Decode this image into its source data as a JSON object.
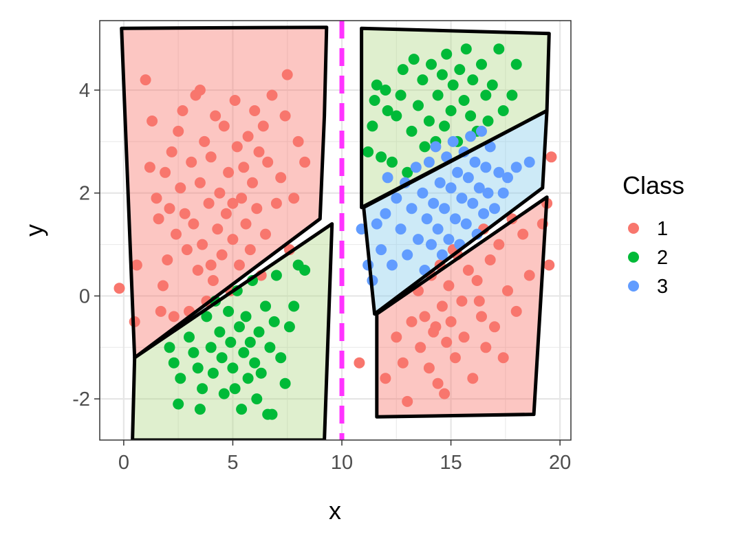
{
  "chart_data": {
    "type": "scatter",
    "title": "",
    "xlabel": "x",
    "ylabel": "y",
    "xlim": [
      -1.1,
      20.5
    ],
    "ylim": [
      -2.8,
      5.35
    ],
    "xticks": [
      0,
      5,
      10,
      15,
      20
    ],
    "yticks": [
      -2,
      0,
      2,
      4
    ],
    "grid": true,
    "legend": {
      "title": "Class",
      "position": "right",
      "entries": [
        {
          "label": "1",
          "color": "#F8766D"
        },
        {
          "label": "2",
          "color": "#00BA38"
        },
        {
          "label": "3",
          "color": "#619CFF"
        }
      ]
    },
    "decision_boundary": {
      "x": 10,
      "color": "#FF33FF",
      "style": "dashed"
    },
    "regions": [
      {
        "class": "1",
        "fill": "#F8766D",
        "points": [
          [
            -0.1,
            5.2
          ],
          [
            9.3,
            5.22
          ],
          [
            9.2,
            3.5
          ],
          [
            9.0,
            1.5
          ],
          [
            0.5,
            -1.2
          ]
        ]
      },
      {
        "class": "2",
        "fill": "#B3D98A",
        "points": [
          [
            0.5,
            -1.2
          ],
          [
            9.55,
            1.4
          ],
          [
            9.2,
            -2.8
          ],
          [
            0.4,
            -2.8
          ]
        ]
      },
      {
        "class": "2",
        "fill": "#B3D98A",
        "points": [
          [
            10.9,
            5.2
          ],
          [
            19.5,
            5.1
          ],
          [
            19.4,
            3.6
          ],
          [
            10.9,
            1.72
          ]
        ]
      },
      {
        "class": "3",
        "fill": "#87CEEB",
        "points": [
          [
            11.0,
            1.72
          ],
          [
            19.4,
            3.6
          ],
          [
            19.2,
            2.1
          ],
          [
            11.5,
            -0.35
          ]
        ]
      },
      {
        "class": "1",
        "fill": "#F8766D",
        "points": [
          [
            11.6,
            -0.35
          ],
          [
            19.4,
            1.92
          ],
          [
            18.8,
            -2.3
          ],
          [
            11.6,
            -2.35
          ]
        ]
      }
    ],
    "series": [
      {
        "name": "1",
        "color": "#F8766D",
        "points": [
          [
            -0.2,
            0.15
          ],
          [
            0.5,
            -0.5
          ],
          [
            0.6,
            0.6
          ],
          [
            1.0,
            4.2
          ],
          [
            1.2,
            2.5
          ],
          [
            1.3,
            3.4
          ],
          [
            1.5,
            1.9
          ],
          [
            1.6,
            1.5
          ],
          [
            1.7,
            -0.3
          ],
          [
            1.8,
            0.2
          ],
          [
            1.9,
            2.4
          ],
          [
            2.0,
            0.7
          ],
          [
            2.1,
            1.7
          ],
          [
            2.2,
            2.8
          ],
          [
            2.3,
            -0.4
          ],
          [
            2.4,
            1.2
          ],
          [
            2.5,
            3.2
          ],
          [
            2.6,
            2.1
          ],
          [
            2.7,
            3.6
          ],
          [
            2.8,
            1.6
          ],
          [
            2.9,
            0.9
          ],
          [
            3.0,
            -0.3
          ],
          [
            3.1,
            2.6
          ],
          [
            3.2,
            1.4
          ],
          [
            3.3,
            3.9
          ],
          [
            3.4,
            0.5
          ],
          [
            3.5,
            2.2
          ],
          [
            3.6,
            1.0
          ],
          [
            3.7,
            3.0
          ],
          [
            3.8,
            -0.1
          ],
          [
            3.9,
            1.8
          ],
          [
            4.0,
            2.7
          ],
          [
            4.1,
            0.3
          ],
          [
            4.2,
            3.5
          ],
          [
            4.3,
            1.3
          ],
          [
            4.4,
            2.0
          ],
          [
            4.5,
            0.8
          ],
          [
            4.6,
            3.3
          ],
          [
            4.7,
            1.6
          ],
          [
            4.8,
            2.4
          ],
          [
            4.9,
            0.1
          ],
          [
            5.0,
            1.1
          ],
          [
            5.1,
            3.8
          ],
          [
            5.2,
            2.9
          ],
          [
            5.3,
            0.6
          ],
          [
            5.4,
            1.9
          ],
          [
            5.5,
            2.5
          ],
          [
            5.6,
            1.4
          ],
          [
            5.7,
            3.1
          ],
          [
            5.8,
            0.9
          ],
          [
            5.9,
            2.2
          ],
          [
            6.0,
            3.6
          ],
          [
            6.1,
            1.7
          ],
          [
            6.2,
            2.8
          ],
          [
            6.3,
            0.4
          ],
          [
            6.4,
            3.3
          ],
          [
            6.5,
            1.2
          ],
          [
            6.6,
            2.6
          ],
          [
            6.8,
            3.9
          ],
          [
            7.0,
            1.8
          ],
          [
            7.2,
            2.3
          ],
          [
            7.4,
            3.5
          ],
          [
            7.5,
            4.3
          ],
          [
            7.6,
            0.9
          ],
          [
            7.8,
            1.9
          ],
          [
            8.0,
            3.0
          ],
          [
            8.3,
            2.6
          ],
          [
            3.5,
            4.0
          ],
          [
            4.0,
            0.6
          ],
          [
            5.0,
            1.8
          ],
          [
            12.5,
            -0.8
          ],
          [
            12.8,
            -1.3
          ],
          [
            13.0,
            -2.05
          ],
          [
            13.2,
            -0.5
          ],
          [
            13.5,
            0.1
          ],
          [
            13.6,
            -1.0
          ],
          [
            13.8,
            -0.4
          ],
          [
            14.0,
            -1.4
          ],
          [
            14.1,
            0.4
          ],
          [
            14.2,
            -0.7
          ],
          [
            14.4,
            -1.7
          ],
          [
            14.5,
            0.6
          ],
          [
            14.6,
            -0.2
          ],
          [
            14.7,
            -1.9
          ],
          [
            14.8,
            -0.9
          ],
          [
            14.9,
            0.2
          ],
          [
            15.0,
            -0.5
          ],
          [
            15.2,
            -1.2
          ],
          [
            15.3,
            0.8
          ],
          [
            15.5,
            -0.1
          ],
          [
            15.6,
            -0.8
          ],
          [
            15.8,
            0.5
          ],
          [
            16.0,
            -1.6
          ],
          [
            16.2,
            0.3
          ],
          [
            16.4,
            -0.4
          ],
          [
            16.5,
            1.3
          ],
          [
            16.6,
            -1.0
          ],
          [
            16.8,
            0.7
          ],
          [
            17.0,
            -0.6
          ],
          [
            17.2,
            1.0
          ],
          [
            17.4,
            -1.2
          ],
          [
            17.6,
            0.1
          ],
          [
            17.8,
            1.5
          ],
          [
            18.0,
            -0.3
          ],
          [
            18.3,
            1.2
          ],
          [
            18.6,
            0.4
          ],
          [
            19.2,
            1.4
          ],
          [
            19.4,
            1.8
          ],
          [
            19.5,
            0.6
          ],
          [
            19.6,
            2.7
          ],
          [
            10.8,
            -1.3
          ],
          [
            12.0,
            -1.6
          ],
          [
            14.3,
            -0.6
          ],
          [
            15.1,
            0.9
          ],
          [
            16.3,
            -0.1
          ]
        ]
      },
      {
        "name": "2",
        "color": "#00BA38",
        "points": [
          [
            2.1,
            -1.0
          ],
          [
            2.3,
            -1.3
          ],
          [
            2.5,
            -2.1
          ],
          [
            2.6,
            -1.6
          ],
          [
            3.0,
            -0.8
          ],
          [
            3.2,
            -1.1
          ],
          [
            3.4,
            -1.4
          ],
          [
            3.5,
            -2.2
          ],
          [
            3.6,
            -1.8
          ],
          [
            3.8,
            -0.4
          ],
          [
            4.0,
            -1.0
          ],
          [
            4.1,
            -1.5
          ],
          [
            4.2,
            -0.1
          ],
          [
            4.4,
            -0.7
          ],
          [
            4.5,
            -1.2
          ],
          [
            4.6,
            -1.9
          ],
          [
            4.8,
            -0.3
          ],
          [
            4.9,
            -0.9
          ],
          [
            5.0,
            -1.4
          ],
          [
            5.1,
            -1.8
          ],
          [
            5.2,
            0.1
          ],
          [
            5.3,
            -0.6
          ],
          [
            5.4,
            -2.2
          ],
          [
            5.5,
            -1.1
          ],
          [
            5.6,
            -0.4
          ],
          [
            5.7,
            -1.6
          ],
          [
            5.8,
            -0.9
          ],
          [
            5.9,
            0.3
          ],
          [
            6.0,
            -1.3
          ],
          [
            6.1,
            -2.0
          ],
          [
            6.2,
            -0.7
          ],
          [
            6.3,
            -1.5
          ],
          [
            6.5,
            -0.2
          ],
          [
            6.6,
            -2.3
          ],
          [
            6.7,
            -1.0
          ],
          [
            6.8,
            -2.3
          ],
          [
            6.9,
            -0.5
          ],
          [
            7.0,
            0.4
          ],
          [
            7.2,
            -1.2
          ],
          [
            7.4,
            -1.7
          ],
          [
            7.6,
            -0.6
          ],
          [
            7.8,
            -0.2
          ],
          [
            8.0,
            0.6
          ],
          [
            8.3,
            0.5
          ],
          [
            11.2,
            2.8
          ],
          [
            11.4,
            3.3
          ],
          [
            11.5,
            3.8
          ],
          [
            11.6,
            4.1
          ],
          [
            11.8,
            2.7
          ],
          [
            12.0,
            4.0
          ],
          [
            12.1,
            3.6
          ],
          [
            12.3,
            2.6
          ],
          [
            12.5,
            3.5
          ],
          [
            12.7,
            3.9
          ],
          [
            12.8,
            4.4
          ],
          [
            13.0,
            2.4
          ],
          [
            13.2,
            3.2
          ],
          [
            13.3,
            4.6
          ],
          [
            13.5,
            3.7
          ],
          [
            13.7,
            4.2
          ],
          [
            13.8,
            2.9
          ],
          [
            14.0,
            3.4
          ],
          [
            14.1,
            4.5
          ],
          [
            14.3,
            3.0
          ],
          [
            14.4,
            3.9
          ],
          [
            14.6,
            4.3
          ],
          [
            14.7,
            3.3
          ],
          [
            14.8,
            4.7
          ],
          [
            15.0,
            3.6
          ],
          [
            15.1,
            4.1
          ],
          [
            15.3,
            3.0
          ],
          [
            15.4,
            4.4
          ],
          [
            15.6,
            3.8
          ],
          [
            15.7,
            4.8
          ],
          [
            15.9,
            3.5
          ],
          [
            16.0,
            4.2
          ],
          [
            16.2,
            3.2
          ],
          [
            16.4,
            4.5
          ],
          [
            16.6,
            3.9
          ],
          [
            16.7,
            3.4
          ],
          [
            16.9,
            4.1
          ],
          [
            17.2,
            4.8
          ],
          [
            17.4,
            3.6
          ],
          [
            17.8,
            3.9
          ],
          [
            18.0,
            4.5
          ]
        ]
      },
      {
        "name": "3",
        "color": "#619CFF",
        "points": [
          [
            10.9,
            1.3
          ],
          [
            11.2,
            0.6
          ],
          [
            11.4,
            0.3
          ],
          [
            11.6,
            1.4
          ],
          [
            11.8,
            0.9
          ],
          [
            12.0,
            1.6
          ],
          [
            12.1,
            2.3
          ],
          [
            12.3,
            0.6
          ],
          [
            12.5,
            1.9
          ],
          [
            12.7,
            1.3
          ],
          [
            12.9,
            2.2
          ],
          [
            13.0,
            0.8
          ],
          [
            13.2,
            1.7
          ],
          [
            13.4,
            2.5
          ],
          [
            13.5,
            1.1
          ],
          [
            13.7,
            2.0
          ],
          [
            13.8,
            0.5
          ],
          [
            13.9,
            1.5
          ],
          [
            14.0,
            2.6
          ],
          [
            14.1,
            1.0
          ],
          [
            14.2,
            1.8
          ],
          [
            14.3,
            2.9
          ],
          [
            14.4,
            1.3
          ],
          [
            14.5,
            2.2
          ],
          [
            14.6,
            0.8
          ],
          [
            14.7,
            1.7
          ],
          [
            14.8,
            2.7
          ],
          [
            14.9,
            1.1
          ],
          [
            15.0,
            2.1
          ],
          [
            15.1,
            3.0
          ],
          [
            15.2,
            1.5
          ],
          [
            15.3,
            2.4
          ],
          [
            15.4,
            1.0
          ],
          [
            15.5,
            1.9
          ],
          [
            15.6,
            2.8
          ],
          [
            15.7,
            1.4
          ],
          [
            15.8,
            2.3
          ],
          [
            15.9,
            3.1
          ],
          [
            16.0,
            1.8
          ],
          [
            16.1,
            2.6
          ],
          [
            16.2,
            1.2
          ],
          [
            16.3,
            2.1
          ],
          [
            16.4,
            3.2
          ],
          [
            16.5,
            1.6
          ],
          [
            16.6,
            2.5
          ],
          [
            16.7,
            2.0
          ],
          [
            16.8,
            2.9
          ],
          [
            17.0,
            1.7
          ],
          [
            17.2,
            2.4
          ],
          [
            17.4,
            2.0
          ],
          [
            17.6,
            2.3
          ],
          [
            18.0,
            2.5
          ],
          [
            18.6,
            2.6
          ]
        ]
      }
    ]
  }
}
